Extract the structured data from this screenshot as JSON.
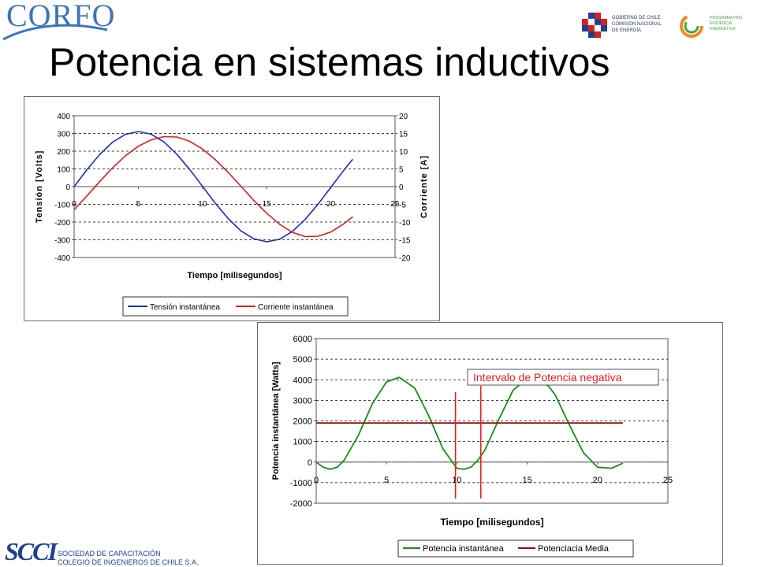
{
  "logos": {
    "corfo": "CORFO",
    "gobierno": [
      "GOBIERNO DE CHILE",
      "COMISIÓN NACIONAL",
      "DE ENERGÍA"
    ],
    "eficiencia": [
      "PROGRAMA PAÍS",
      "EFICIENCIA",
      "ENERGÉTICA"
    ],
    "footer_mark": "SCCI",
    "footer_lines": [
      "SOCIEDAD DE CAPACITACIÓN",
      "COLEGIO DE INGENIEROS DE CHILE S.A."
    ]
  },
  "title": "Potencia en sistemas inductivos",
  "chart_data": [
    {
      "type": "line",
      "xlabel": "Tiempo [milisegundos]",
      "ylabel": "Tensión [Volts]",
      "y2label": "Corriente [A]",
      "xlim": [
        0,
        25
      ],
      "ylim": [
        -400,
        400
      ],
      "y2lim": [
        -20,
        20
      ],
      "xticks": [
        "0",
        "5",
        "10",
        "15",
        "20",
        "25"
      ],
      "yticks": [
        "400",
        "300",
        "200",
        "100",
        "0",
        "-100",
        "-200",
        "-300",
        "-400"
      ],
      "y2ticks": [
        "20",
        "15",
        "10",
        "5",
        "0",
        "-5",
        "-10",
        "-15",
        "-20"
      ],
      "grid": "horizontal dashed",
      "legend_position": "bottom",
      "series": [
        {
          "name": "Tensión instantánea",
          "axis": "left",
          "color": "#1f2fa8",
          "x": [
            0,
            1,
            2,
            3,
            4,
            5,
            6,
            7,
            8,
            9,
            10,
            11,
            12,
            13,
            14,
            15,
            16,
            17,
            18,
            19,
            20,
            21,
            21.7
          ],
          "y": [
            0,
            96,
            182,
            251,
            295,
            311,
            296,
            252,
            183,
            97,
            2,
            -94,
            -180,
            -250,
            -294,
            -311,
            -297,
            -253,
            -185,
            -99,
            -4,
            92,
            154
          ]
        },
        {
          "name": "Corriente instantánea",
          "axis": "right",
          "color": "#d42020",
          "x": [
            0,
            1,
            2,
            3,
            4,
            5,
            6,
            7,
            8,
            9,
            10,
            11,
            12,
            13,
            14,
            15,
            16,
            17,
            18,
            19,
            20,
            21,
            21.7
          ],
          "y": [
            -6.5,
            -2.6,
            1.5,
            5.3,
            8.7,
            11.4,
            13.2,
            14.1,
            14.0,
            12.8,
            10.6,
            7.6,
            4.0,
            0.1,
            -3.9,
            -7.5,
            -10.6,
            -12.9,
            -14.1,
            -14.0,
            -12.8,
            -10.5,
            -8.5
          ]
        }
      ]
    },
    {
      "type": "line",
      "xlabel": "Tiempo [milisegundos]",
      "ylabel": "Potencia instantánea [Watts]",
      "xlim": [
        0,
        25
      ],
      "ylim": [
        -2000,
        6000
      ],
      "xticks": [
        "0",
        "5",
        "10",
        "15",
        "20",
        "25"
      ],
      "yticks": [
        "6000",
        "5000",
        "4000",
        "3000",
        "2000",
        "1000",
        "0",
        "-1000",
        "-2000"
      ],
      "grid": "horizontal dashed",
      "legend_position": "bottom",
      "annotation": {
        "text": "Intervalo de Potencia negativa",
        "color": "#e02020",
        "markers_x": [
          9.9,
          11.7
        ]
      },
      "series": [
        {
          "name": "Potencia instantánea",
          "color": "#1a8a1a",
          "x": [
            0,
            0.5,
            1,
            1.5,
            2,
            3,
            4,
            5,
            5.9,
            7,
            8,
            9,
            10,
            10.5,
            11,
            11.5,
            12,
            13,
            14,
            15,
            16,
            16.5,
            17,
            18,
            19,
            20,
            21,
            21.5,
            21.8
          ],
          "y": [
            0,
            -250,
            -350,
            -250,
            100,
            1300,
            2850,
            3900,
            4120,
            3600,
            2250,
            650,
            -300,
            -350,
            -250,
            100,
            600,
            2100,
            3500,
            4050,
            3850,
            3700,
            3250,
            1800,
            450,
            -250,
            -300,
            -150,
            -50
          ]
        },
        {
          "name": "Potenciacia Media",
          "color": "#8a1010",
          "x": [
            0,
            21.8
          ],
          "y": [
            1900,
            1900
          ]
        }
      ]
    }
  ]
}
